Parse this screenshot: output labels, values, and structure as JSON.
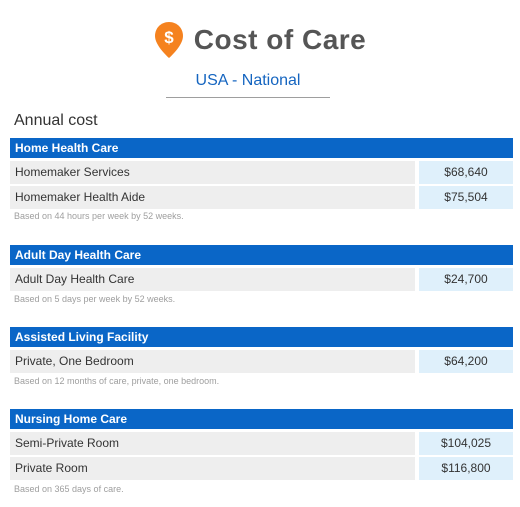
{
  "brand": {
    "title": "Cost of Care",
    "pin_symbol": "$",
    "pin_color": "#f5821f"
  },
  "region": "USA - National",
  "annual_label": "Annual cost",
  "sections": [
    {
      "title": "Home Health Care",
      "rows": [
        {
          "label": "Homemaker Services",
          "value": "$68,640"
        },
        {
          "label": "Homemaker Health Aide",
          "value": "$75,504"
        }
      ],
      "note": "Based on 44 hours per week by 52 weeks."
    },
    {
      "title": "Adult Day Health Care",
      "rows": [
        {
          "label": "Adult Day Health Care",
          "value": "$24,700"
        }
      ],
      "note": "Based on 5 days per week by 52 weeks."
    },
    {
      "title": "Assisted Living Facility",
      "rows": [
        {
          "label": "Private, One Bedroom",
          "value": "$64,200"
        }
      ],
      "note": "Based on 12 months of care, private, one bedroom."
    },
    {
      "title": "Nursing Home Care",
      "rows": [
        {
          "label": "Semi-Private Room",
          "value": "$104,025"
        },
        {
          "label": "Private Room",
          "value": "$116,800"
        }
      ],
      "note": "Based on 365 days of care."
    }
  ]
}
